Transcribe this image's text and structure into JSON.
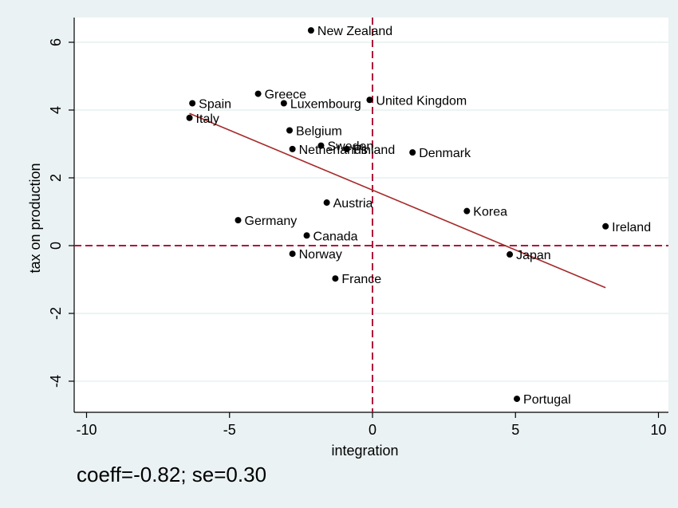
{
  "chart_data": {
    "type": "scatter",
    "xlabel": "integration",
    "ylabel": "tax on production",
    "xlim": [
      -10.3,
      10.4
    ],
    "ylim": [
      -4.9,
      6.7
    ],
    "xticks": [
      -10,
      -5,
      0,
      5,
      10
    ],
    "xtick_labels": [
      "-10",
      "-5",
      "0",
      "5",
      "10"
    ],
    "yticks": [
      -4,
      -2,
      0,
      2,
      4,
      6
    ],
    "ytick_labels": [
      "-4",
      "-2",
      "0",
      "2",
      "4",
      "6"
    ],
    "grid": "horizontal",
    "points": [
      {
        "label": "New Zealand",
        "x": -2.15,
        "y": 6.35
      },
      {
        "label": "Greece",
        "x": -4.0,
        "y": 4.48
      },
      {
        "label": "Spain",
        "x": -6.3,
        "y": 4.2
      },
      {
        "label": "Luxembourg",
        "x": -3.1,
        "y": 4.2
      },
      {
        "label": "United Kingdom",
        "x": -0.1,
        "y": 4.3
      },
      {
        "label": "Italy",
        "x": -6.4,
        "y": 3.77
      },
      {
        "label": "Belgium",
        "x": -2.9,
        "y": 3.4
      },
      {
        "label": "Sweden",
        "x": -1.8,
        "y": 2.95
      },
      {
        "label": "Netherlands",
        "x": -2.8,
        "y": 2.85
      },
      {
        "label": "Finland",
        "x": -0.9,
        "y": 2.85
      },
      {
        "label": "Denmark",
        "x": 1.4,
        "y": 2.75
      },
      {
        "label": "Austria",
        "x": -1.6,
        "y": 1.27
      },
      {
        "label": "Korea",
        "x": 3.3,
        "y": 1.02
      },
      {
        "label": "Germany",
        "x": -4.7,
        "y": 0.75
      },
      {
        "label": "Ireland",
        "x": 8.15,
        "y": 0.57
      },
      {
        "label": "Canada",
        "x": -2.3,
        "y": 0.3
      },
      {
        "label": "Norway",
        "x": -2.8,
        "y": -0.24
      },
      {
        "label": "Japan",
        "x": 4.8,
        "y": -0.26
      },
      {
        "label": "France",
        "x": -1.3,
        "y": -0.97
      },
      {
        "label": "Portugal",
        "x": 5.05,
        "y": -4.52
      }
    ],
    "fit_line": {
      "x": [
        -6.4,
        8.15
      ],
      "y": [
        3.9,
        -1.24
      ]
    },
    "reference_lines": {
      "x": 0,
      "y": 0
    },
    "colors": {
      "points": "#000000",
      "fit_line": "#a52a2a",
      "reference_lines": "#b0163a",
      "grid": "#e6f0f0",
      "background": "#eaf2f3",
      "plot_background": "#ffffff"
    }
  },
  "note": "coeff=-0.82; se=0.30"
}
